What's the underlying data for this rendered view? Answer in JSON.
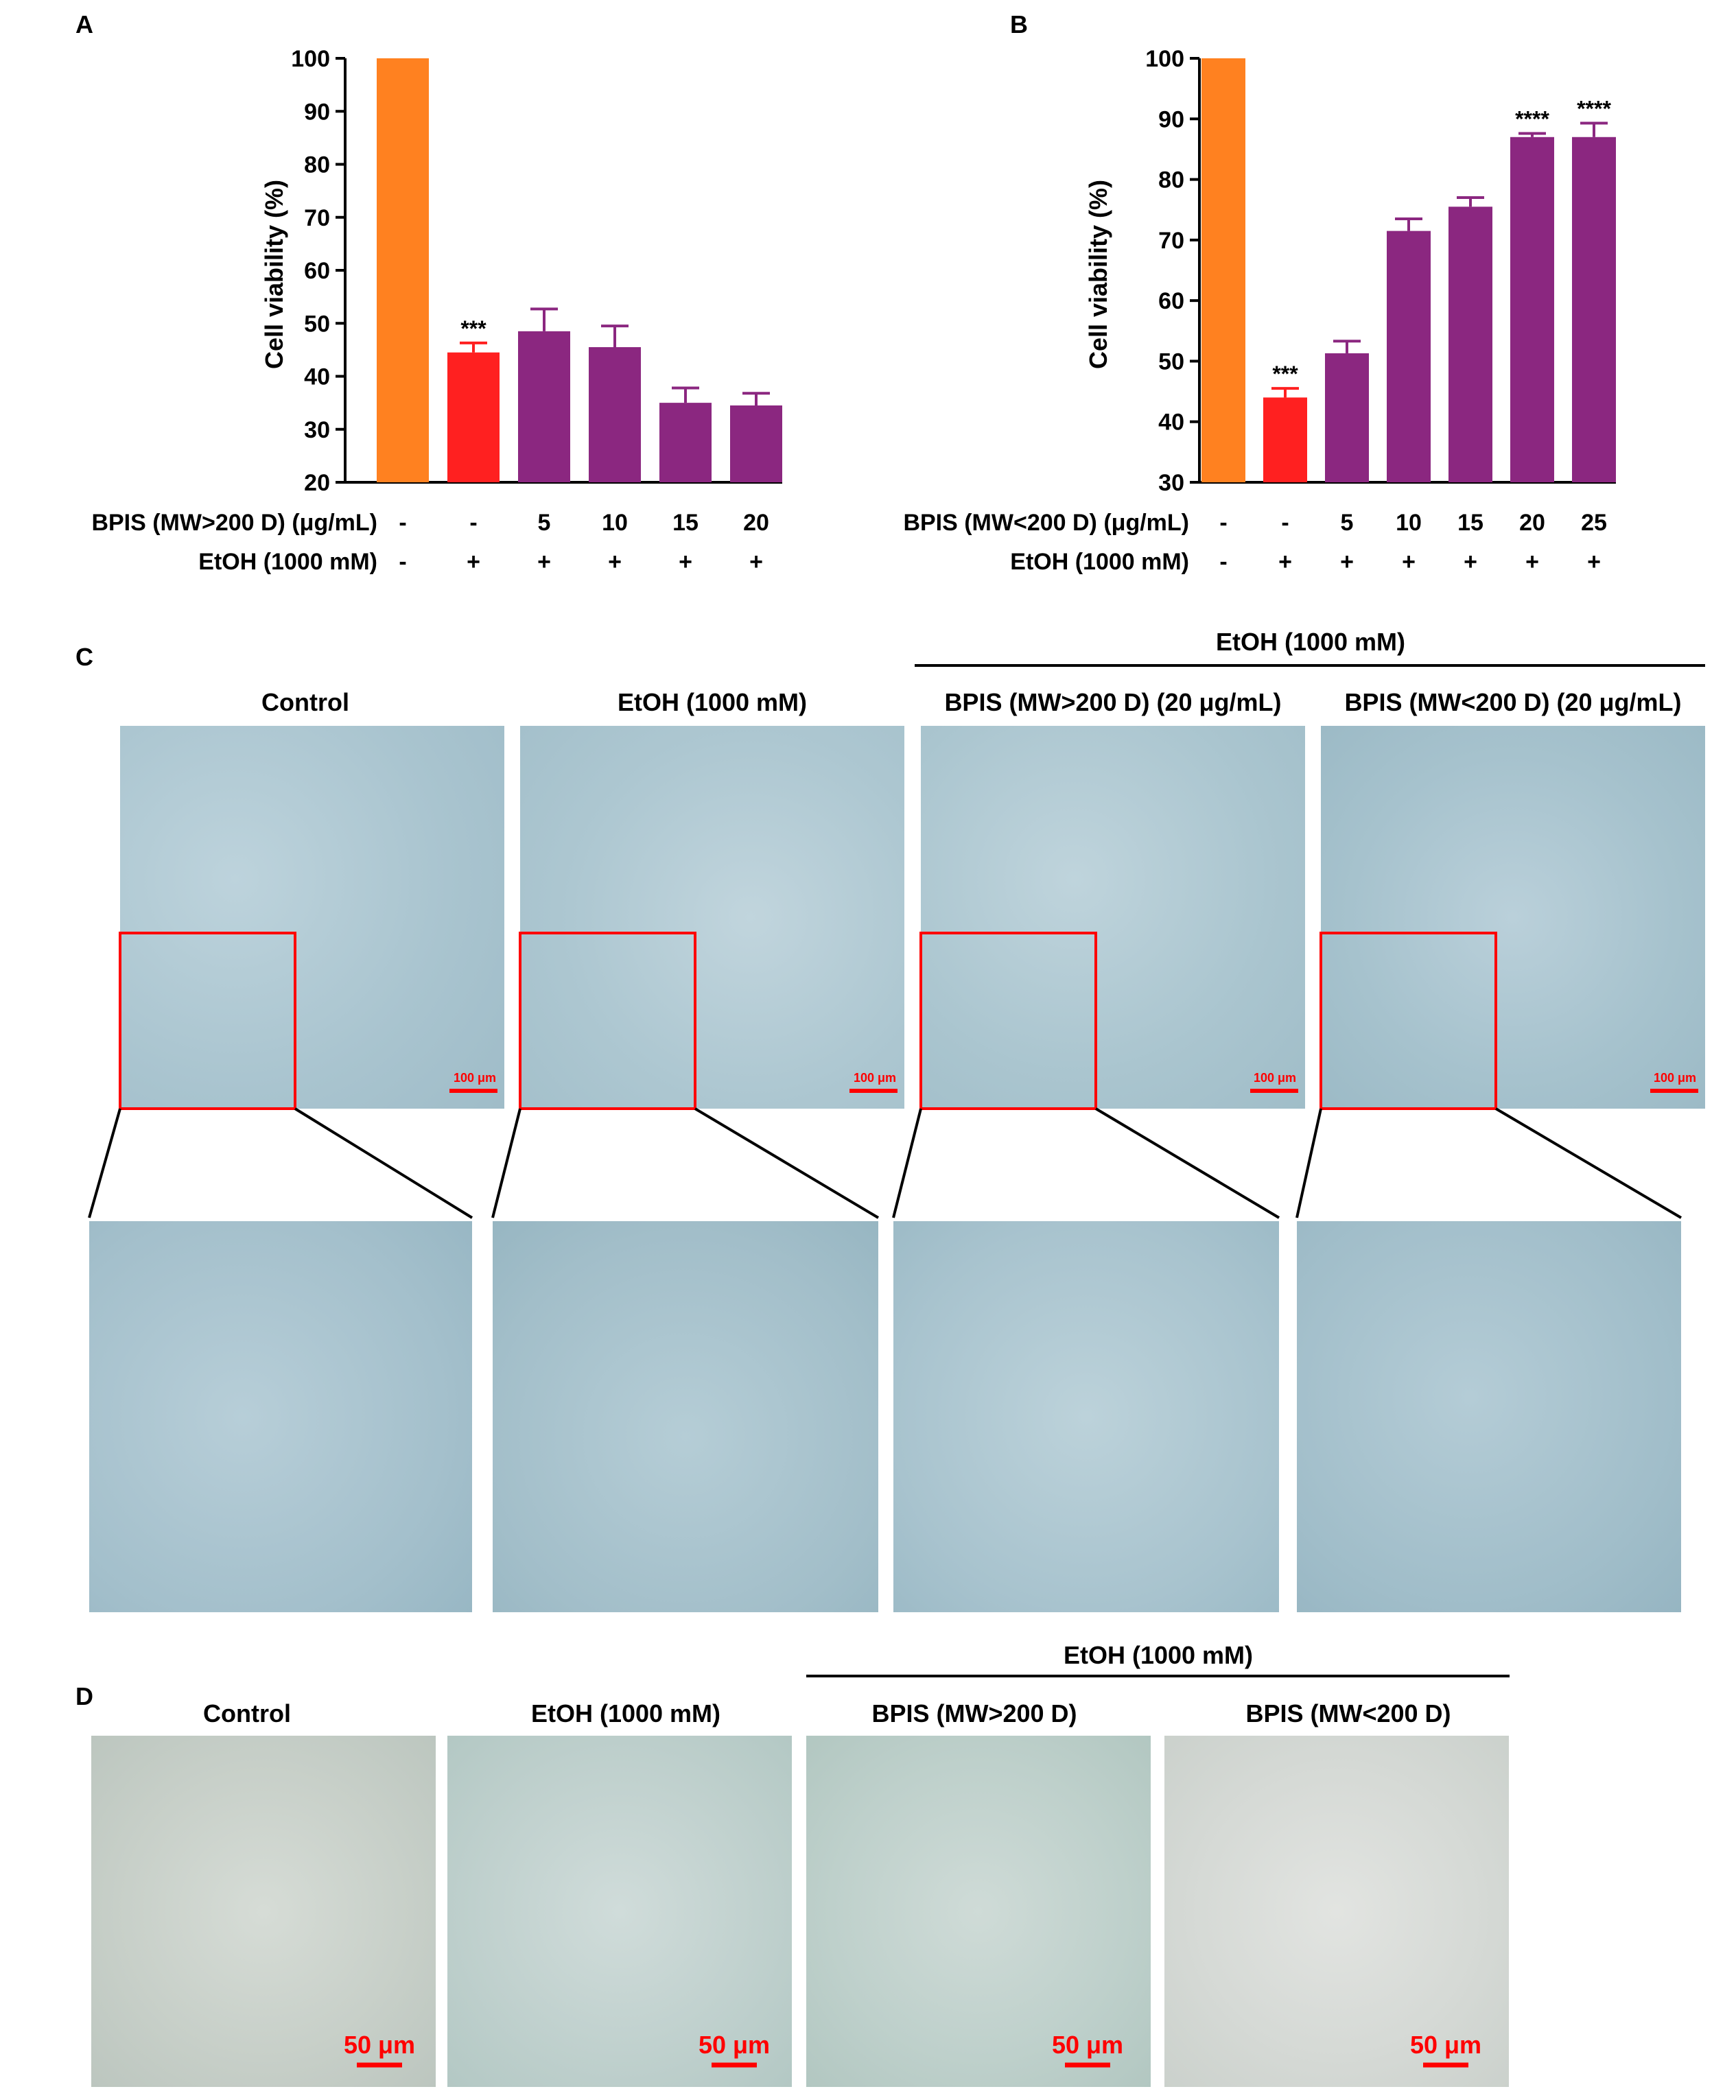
{
  "panels": {
    "a_label": "A",
    "b_label": "B",
    "c_label": "C",
    "d_label": "D"
  },
  "chart_data": [
    {
      "type": "bar",
      "ylabel": "Cell viability (%)",
      "ylim": [
        20,
        100
      ],
      "yticks": [
        20,
        30,
        40,
        50,
        60,
        70,
        80,
        90,
        100
      ],
      "values": [
        100,
        44.5,
        48.5,
        45.5,
        35,
        34.5
      ],
      "errors": [
        0,
        1.8,
        4.2,
        4.0,
        2.8,
        2.3
      ],
      "colors": [
        "#FF8120",
        "#FF2020",
        "#8B2780",
        "#8B2780",
        "#8B2780",
        "#8B2780"
      ],
      "annotations": [
        "",
        "***",
        "",
        "",
        "",
        ""
      ],
      "row1_label": "BPIS (MW>200 D) (μg/mL)",
      "row1_values": [
        "-",
        "-",
        "5",
        "10",
        "15",
        "20"
      ],
      "row2_label": "EtOH (1000 mM)",
      "row2_values": [
        "-",
        "+",
        "+",
        "+",
        "+",
        "+"
      ]
    },
    {
      "type": "bar",
      "ylabel": "Cell viability (%)",
      "ylim": [
        30,
        100
      ],
      "yticks": [
        30,
        40,
        50,
        60,
        70,
        80,
        90,
        100
      ],
      "values": [
        100,
        44,
        51.3,
        71.5,
        75.5,
        87,
        87
      ],
      "errors": [
        0,
        1.5,
        2.0,
        2.0,
        1.5,
        0.6,
        2.3
      ],
      "colors": [
        "#FF8120",
        "#FF2020",
        "#8B2780",
        "#8B2780",
        "#8B2780",
        "#8B2780",
        "#8B2780"
      ],
      "annotations": [
        "",
        "***",
        "",
        "",
        "",
        "****",
        "****"
      ],
      "row1_label": "BPIS (MW<200 D) (μg/mL)",
      "row1_values": [
        "-",
        "-",
        "5",
        "10",
        "15",
        "20",
        "25"
      ],
      "row2_label": "EtOH (1000 mM)",
      "row2_values": [
        "-",
        "+",
        "+",
        "+",
        "+",
        "+",
        "+"
      ]
    }
  ],
  "panel_c": {
    "group_label": "EtOH (1000 mM)",
    "titles": [
      "Control",
      "EtOH (1000 mM)",
      "BPIS (MW>200 D) (20 μg/mL)",
      "BPIS (MW<200 D) (20 μg/mL)"
    ],
    "scale_label": "100 μm"
  },
  "panel_d": {
    "group_label": "EtOH (1000 mM)",
    "titles": [
      "Control",
      "EtOH (1000 mM)",
      "BPIS (MW>200 D)",
      "BPIS (MW<200 D)"
    ],
    "scale_label": "50 μm"
  }
}
